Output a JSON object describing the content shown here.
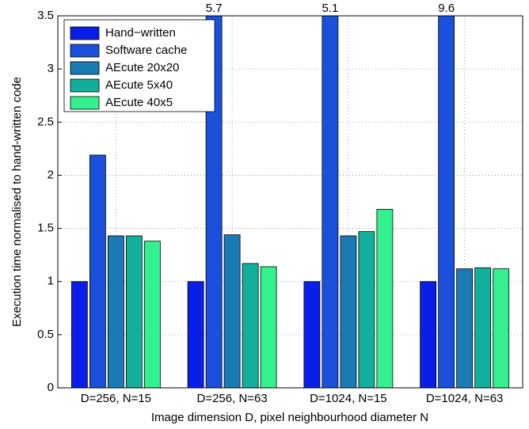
{
  "chart_data": {
    "type": "bar",
    "y_label": "Execution time normalised to hand-written code",
    "x_label": "Image dimension D, pixel neighbourhood diameter N",
    "categories": [
      "D=256, N=15",
      "D=256, N=63",
      "D=1024, N=15",
      "D=1024, N=63"
    ],
    "series": [
      {
        "name": "Hand−written",
        "color": "#0a1eea",
        "values": [
          1,
          1,
          1,
          1
        ]
      },
      {
        "name": "Software cache",
        "color": "#1a50dc",
        "values": [
          2.19,
          5.7,
          5.1,
          9.6
        ],
        "value_labels": [
          null,
          "5.7",
          "5.1",
          "9.6"
        ]
      },
      {
        "name": "AEcute 20x20",
        "color": "#1a7ab4",
        "values": [
          1.43,
          1.44,
          1.43,
          1.12
        ]
      },
      {
        "name": "AEcute 5x40",
        "color": "#12b09c",
        "values": [
          1.43,
          1.17,
          1.47,
          1.13
        ]
      },
      {
        "name": "AEcute 40x5",
        "color": "#34f08e",
        "values": [
          1.38,
          1.14,
          1.68,
          1.12
        ]
      }
    ],
    "ylim": [
      0,
      3.5
    ],
    "yticks": [
      0,
      0.5,
      1,
      1.5,
      2,
      2.5,
      3,
      3.5
    ],
    "grid": true,
    "legend": "upper left"
  }
}
